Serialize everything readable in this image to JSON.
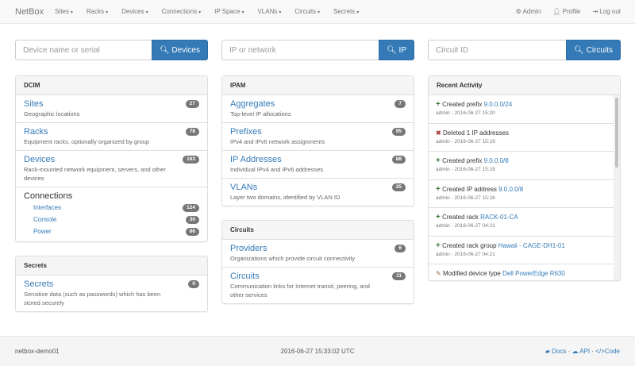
{
  "nav": {
    "brand": "NetBox",
    "menus": [
      "Sites",
      "Racks",
      "Devices",
      "Connections",
      "IP Space",
      "VLANs",
      "Circuits",
      "Secrets"
    ],
    "admin": "Admin",
    "profile": "Profile",
    "logout": "Log out"
  },
  "search": [
    {
      "placeholder": "Device name or serial",
      "button": "Devices"
    },
    {
      "placeholder": "IP or network",
      "button": "IP"
    },
    {
      "placeholder": "Circuit ID",
      "button": "Circuits"
    }
  ],
  "dcim": {
    "title": "DCIM",
    "items": [
      {
        "label": "Sites",
        "desc": "Geographic locations",
        "count": "27"
      },
      {
        "label": "Racks",
        "desc": "Equipment racks, optionally organized by group",
        "count": "78"
      },
      {
        "label": "Devices",
        "desc": "Rack-mounted network equipment, servers, and other devices",
        "count": "163"
      }
    ],
    "connections": {
      "label": "Connections",
      "items": [
        {
          "label": "Interfaces",
          "count": "124"
        },
        {
          "label": "Console",
          "count": "30"
        },
        {
          "label": "Power",
          "count": "86"
        }
      ]
    }
  },
  "secrets": {
    "title": "Secrets",
    "items": [
      {
        "label": "Secrets",
        "desc": "Sensitive data (such as passwords) which has been stored securely",
        "count": "0"
      }
    ]
  },
  "ipam": {
    "title": "IPAM",
    "items": [
      {
        "label": "Aggregates",
        "desc": "Top-level IP allocations",
        "count": "7"
      },
      {
        "label": "Prefixes",
        "desc": "IPv4 and IPv6 network assignments",
        "count": "95"
      },
      {
        "label": "IP Addresses",
        "desc": "Individual IPv4 and IPv6 addresses",
        "count": "88"
      },
      {
        "label": "VLANs",
        "desc": "Layer two domains, identified by VLAN ID",
        "count": "25"
      }
    ]
  },
  "circuits": {
    "title": "Circuits",
    "items": [
      {
        "label": "Providers",
        "desc": "Organizations which provide circuit connectivity",
        "count": "6"
      },
      {
        "label": "Circuits",
        "desc": "Communication links for Internet transit, peering, and other services",
        "count": "11"
      }
    ]
  },
  "activity": {
    "title": "Recent Activity",
    "items": [
      {
        "icon": "plus",
        "action": "Created prefix",
        "link": "9.0.0.0/24",
        "meta": "admin - 2016-06-27 15:20"
      },
      {
        "icon": "remove",
        "action": "Deleted 1 IP addresses",
        "link": "",
        "meta": "admin - 2016-06-27 15:19"
      },
      {
        "icon": "plus",
        "action": "Created prefix",
        "link": "9.0.0.0/8",
        "meta": "admin - 2016-06-27 15:19"
      },
      {
        "icon": "plus",
        "action": "Created IP address",
        "link": "9.0.0.0/8",
        "meta": "admin - 2016-06-27 15:18"
      },
      {
        "icon": "plus",
        "action": "Created rack",
        "link": "RACK-01-CA",
        "meta": "admin - 2016-06-27 04:21"
      },
      {
        "icon": "plus",
        "action": "Created rack group",
        "link": "Hawaii - CAGE-DH1-01",
        "meta": "admin - 2016-06-27 04:21"
      },
      {
        "icon": "pencil",
        "action": "Modified device type",
        "link": "Dell PowerEdge R630",
        "meta": ""
      }
    ]
  },
  "footer": {
    "host": "netbox-demo01",
    "time": "2016-06-27 15:33:02 UTC",
    "docs": "Docs",
    "api": "API",
    "code": "Code",
    "sep": "·"
  }
}
